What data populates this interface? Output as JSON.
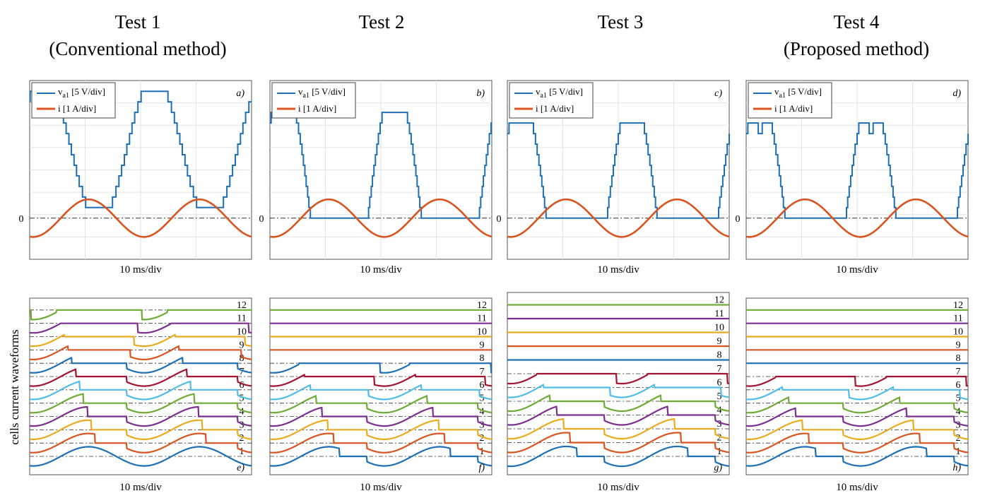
{
  "colors": {
    "voltage": "#1f6fb5",
    "current": "#d9541e",
    "zero_line": "#333333",
    "grid": "#e3e3e3",
    "cells": [
      "#1f6fb5",
      "#d9541e",
      "#e8ac1e",
      "#7b2f8e",
      "#6eab35",
      "#4fbde6",
      "#a2142f",
      "#1f6fb5",
      "#d9541e",
      "#e8ac1e",
      "#7b2f8e",
      "#6eab35"
    ]
  },
  "columns": [
    {
      "title": "Test 1",
      "subtitle": "(Conventional method)"
    },
    {
      "title": "Test 2",
      "subtitle": ""
    },
    {
      "title": "Test 3",
      "subtitle": ""
    },
    {
      "title": "Test 4",
      "subtitle": "(Proposed method)"
    }
  ],
  "top_panel_xlabel": "10 ms/div",
  "bottom_panel_xlabel": "10 ms/div",
  "bottom_ylabel": "cells current waveforms",
  "zero_label": "0",
  "legend": {
    "voltage": {
      "main": "v",
      "sub": "a1",
      "rest": "[5 V/div]"
    },
    "current": "i [1 A/div]"
  },
  "chart_data": [
    {
      "type": "line",
      "panel_label": "a)",
      "title": "",
      "xlabel": "10 ms/div",
      "ylabel": "",
      "x_unit": "ms",
      "xlim": [
        0,
        40
      ],
      "ylim": [
        -2,
        6
      ],
      "series": [
        {
          "name": "va1 [5 V/div]",
          "kind": "staircase",
          "levels": 12,
          "min_level": 1,
          "max_level": 12,
          "zero_level_width": 0,
          "flat_top_notch": false,
          "period_ms": 20
        },
        {
          "name": "i [1 A/div]",
          "kind": "sine",
          "amplitude_div": 1.0,
          "period_ms": 20
        }
      ]
    },
    {
      "type": "line",
      "panel_label": "b)",
      "title": "",
      "xlabel": "10 ms/div",
      "ylabel": "",
      "x_unit": "ms",
      "xlim": [
        0,
        40
      ],
      "ylim": [
        -2,
        6
      ],
      "series": [
        {
          "name": "va1 [5 V/div]",
          "kind": "staircase",
          "levels": 10,
          "min_level": 0,
          "max_level": 10,
          "zero_level_width": 0.06,
          "flat_top_notch": false,
          "period_ms": 20
        },
        {
          "name": "i [1 A/div]",
          "kind": "sine",
          "amplitude_div": 1.0,
          "period_ms": 20
        }
      ]
    },
    {
      "type": "line",
      "panel_label": "c)",
      "title": "",
      "xlabel": "10 ms/div",
      "ylabel": "",
      "x_unit": "ms",
      "xlim": [
        0,
        40
      ],
      "ylim": [
        -2,
        6
      ],
      "series": [
        {
          "name": "va1 [5 V/div]",
          "kind": "staircase",
          "levels": 9,
          "min_level": 0,
          "max_level": 9,
          "zero_level_width": 0.16,
          "flat_top_notch": false,
          "period_ms": 20
        },
        {
          "name": "i [1 A/div]",
          "kind": "sine",
          "amplitude_div": 1.0,
          "period_ms": 20
        }
      ]
    },
    {
      "type": "line",
      "panel_label": "d)",
      "title": "",
      "xlabel": "10 ms/div",
      "ylabel": "",
      "x_unit": "ms",
      "xlim": [
        0,
        40
      ],
      "ylim": [
        -2,
        6
      ],
      "series": [
        {
          "name": "va1 [5 V/div]",
          "kind": "staircase",
          "levels": 9,
          "min_level": 0,
          "max_level": 9,
          "zero_level_width": 0.16,
          "flat_top_notch": true,
          "period_ms": 20
        },
        {
          "name": "i [1 A/div]",
          "kind": "sine",
          "amplitude_div": 1.0,
          "period_ms": 20
        }
      ]
    },
    {
      "type": "line",
      "panel_label": "e)",
      "xlabel": "10 ms/div",
      "ylabel": "cells current waveforms",
      "cell_labels": [
        "1",
        "2",
        "3",
        "4",
        "5",
        "6",
        "7",
        "8",
        "9",
        "10",
        "11",
        "12"
      ],
      "active_cells": 12,
      "always_on_cells": 1
    },
    {
      "type": "line",
      "panel_label": "f)",
      "xlabel": "10 ms/div",
      "ylabel": "",
      "cell_labels": [
        "1",
        "2",
        "3",
        "4",
        "5",
        "6",
        "7",
        "8",
        "9",
        "10",
        "11",
        "12"
      ],
      "active_cells": 8,
      "always_on_cells": 0
    },
    {
      "type": "line",
      "panel_label": "g)",
      "xlabel": "10 ms/div",
      "ylabel": "",
      "cell_labels": [
        "1",
        "2",
        "3",
        "4",
        "5",
        "6",
        "7",
        "8",
        "9",
        "10",
        "11",
        "12"
      ],
      "active_cells": 7,
      "always_on_cells": 0
    },
    {
      "type": "line",
      "panel_label": "h)",
      "xlabel": "10 ms/div",
      "ylabel": "",
      "cell_labels": [
        "1",
        "2",
        "3",
        "4",
        "5",
        "6",
        "7",
        "8",
        "9",
        "10",
        "11",
        "12"
      ],
      "active_cells": 7,
      "always_on_cells": 0
    }
  ]
}
